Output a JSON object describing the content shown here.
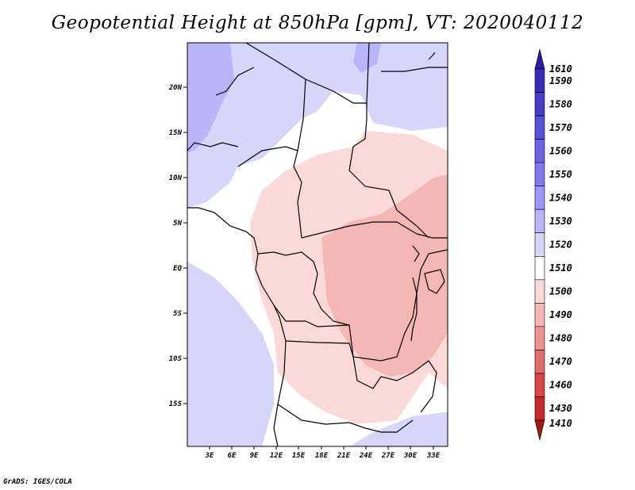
{
  "title": "Geopotential Height at 850hPa [gpm], VT: 2020040112",
  "credit": "GrADS: IGES/COLA",
  "map": {
    "lat_labels": [
      "20N",
      "15N",
      "10N",
      "5N",
      "EQ",
      "5S",
      "10S",
      "15S"
    ],
    "lon_labels": [
      "3E",
      "6E",
      "9E",
      "12E",
      "15E",
      "18E",
      "21E",
      "24E",
      "27E",
      "30E",
      "33E"
    ]
  },
  "colorbar": {
    "labels": [
      "1610",
      "1590",
      "1580",
      "1570",
      "1560",
      "1550",
      "1540",
      "1530",
      "1520",
      "1510",
      "1500",
      "1490",
      "1480",
      "1470",
      "1460",
      "1430",
      "1410"
    ],
    "colors": [
      "#2a1a9c",
      "#3a2cb4",
      "#4a3ec8",
      "#5b50d8",
      "#6d63e4",
      "#8279ee",
      "#9d96f4",
      "#bab5f8",
      "#d6d6fb",
      "#ffffff",
      "#fbd9d9",
      "#f5b6b6",
      "#ec9292",
      "#e26d6d",
      "#d84848",
      "#c52a2a",
      "#a41515"
    ]
  }
}
